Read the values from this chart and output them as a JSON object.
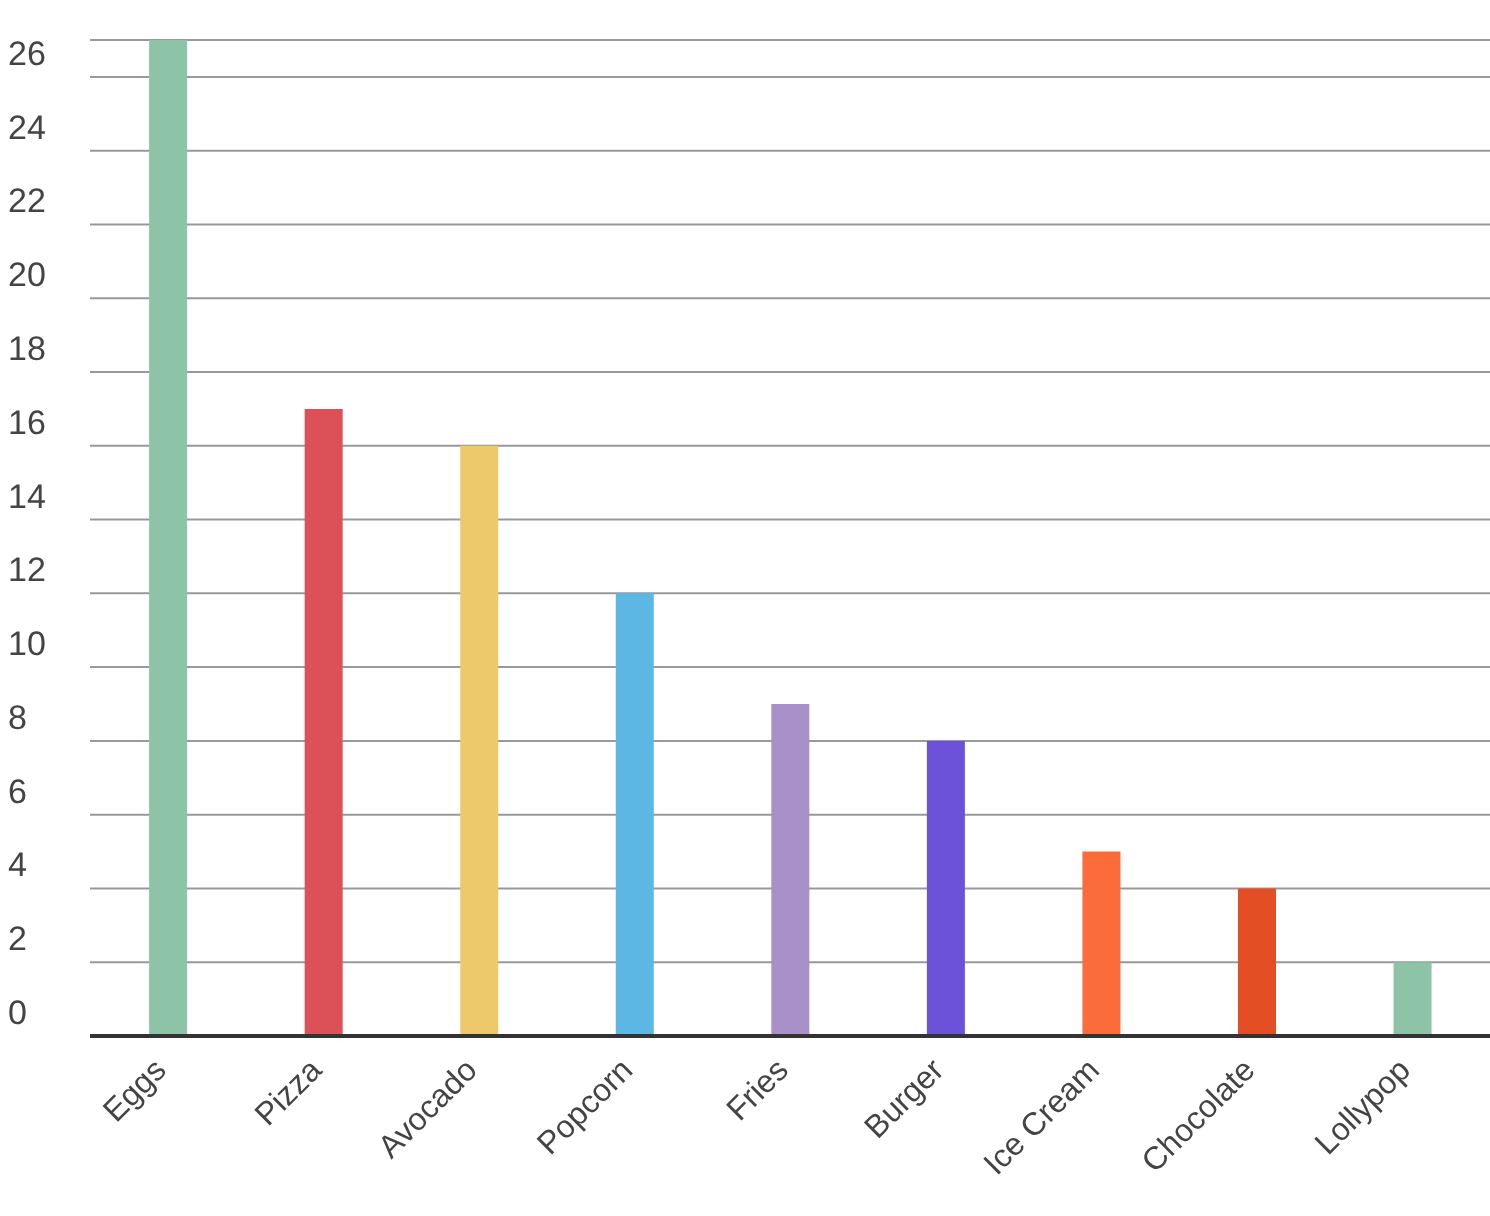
{
  "chart_data": {
    "type": "bar",
    "categories": [
      "Eggs",
      "Pizza",
      "Avocado",
      "Popcorn",
      "Fries",
      "Burger",
      "Ice Cream",
      "Chocolate",
      "Lollypop"
    ],
    "values": [
      27,
      17,
      16,
      12,
      9,
      8,
      5,
      4,
      2
    ],
    "colors": [
      "#8dc3a7",
      "#db5157",
      "#eec96b",
      "#5db7e5",
      "#aa90c8",
      "#6c52d9",
      "#fc6b3a",
      "#e44e25",
      "#8dc3a7"
    ],
    "ylim": [
      0,
      27
    ],
    "yticks": [
      0,
      2,
      4,
      6,
      8,
      10,
      12,
      14,
      16,
      18,
      20,
      22,
      24,
      26
    ],
    "grid": "y",
    "legend": false
  }
}
